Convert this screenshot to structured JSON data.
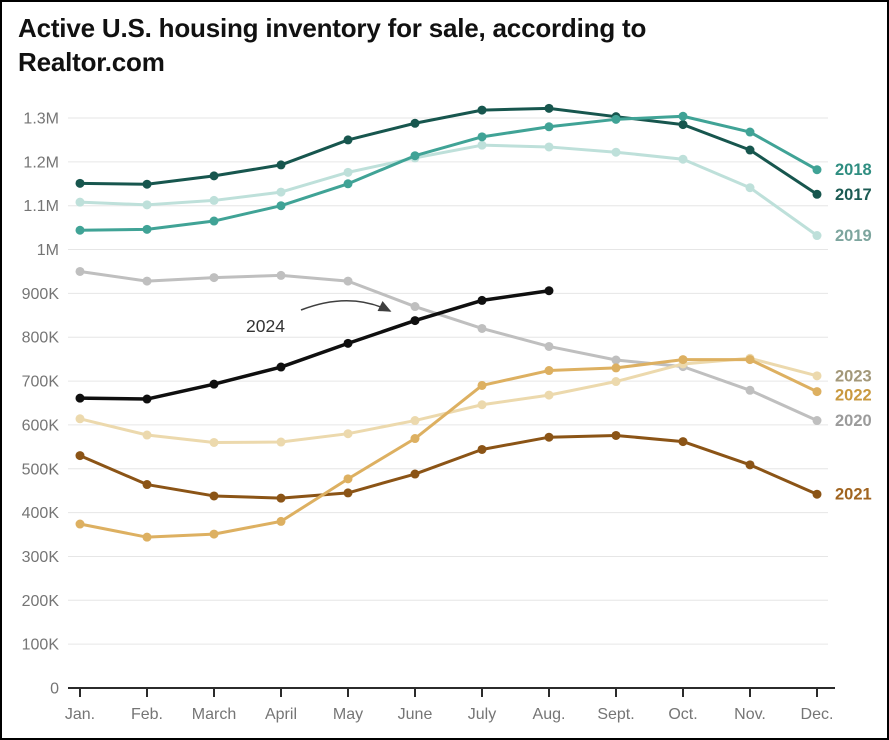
{
  "title": "Active U.S. housing inventory for sale, according to Realtor.com",
  "chart_data": {
    "type": "line",
    "title": "Active U.S. housing inventory for sale, according to Realtor.com",
    "xlabel": "",
    "ylabel": "",
    "x": [
      "Jan.",
      "Feb.",
      "March",
      "April",
      "May",
      "June",
      "July",
      "Aug.",
      "Sept.",
      "Oct.",
      "Nov.",
      "Dec."
    ],
    "ylim": [
      0,
      1300000
    ],
    "grid": true,
    "legend_position": "right-edge-year-labels",
    "yticks": [
      {
        "value": 0,
        "label": "0"
      },
      {
        "value": 100000,
        "label": "100K"
      },
      {
        "value": 200000,
        "label": "200K"
      },
      {
        "value": 300000,
        "label": "300K"
      },
      {
        "value": 400000,
        "label": "400K"
      },
      {
        "value": 500000,
        "label": "500K"
      },
      {
        "value": 600000,
        "label": "600K"
      },
      {
        "value": 700000,
        "label": "700K"
      },
      {
        "value": 800000,
        "label": "800K"
      },
      {
        "value": 900000,
        "label": "900K"
      },
      {
        "value": 1000000,
        "label": "1M"
      },
      {
        "value": 1100000,
        "label": "1.1M"
      },
      {
        "value": 1200000,
        "label": "1.2M"
      },
      {
        "value": 1300000,
        "label": "1.3M"
      }
    ],
    "series": [
      {
        "name": "2017",
        "color": "#17564e",
        "label_color": "#1c5b53",
        "label_at_end": true,
        "values": [
          1151000,
          1149000,
          1168000,
          1193000,
          1250000,
          1288000,
          1318000,
          1322000,
          1303000,
          1285000,
          1227000,
          1126000
        ]
      },
      {
        "name": "2018",
        "color": "#40a396",
        "label_color": "#2f8e81",
        "label_at_end": true,
        "values": [
          1044000,
          1046000,
          1065000,
          1100000,
          1150000,
          1214000,
          1257000,
          1280000,
          1297000,
          1304000,
          1268000,
          1182000
        ]
      },
      {
        "name": "2019",
        "color": "#bee0da",
        "label_color": "#7da59e",
        "label_at_end": true,
        "values": [
          1108000,
          1102000,
          1112000,
          1131000,
          1176000,
          1209000,
          1238000,
          1234000,
          1222000,
          1206000,
          1141000,
          1032000
        ]
      },
      {
        "name": "2020",
        "color": "#bfbfbf",
        "label_color": "#9b9b9b",
        "label_at_end": true,
        "values": [
          950000,
          928000,
          936000,
          941000,
          928000,
          870000,
          820000,
          779000,
          748000,
          733000,
          679000,
          610000
        ]
      },
      {
        "name": "2021",
        "color": "#8b5416",
        "label_color": "#a06420",
        "label_at_end": true,
        "values": [
          530000,
          464000,
          438000,
          433000,
          445000,
          488000,
          544000,
          572000,
          576000,
          562000,
          509000,
          442000
        ]
      },
      {
        "name": "2022",
        "color": "#ddb061",
        "label_color": "#c9993f",
        "label_at_end": true,
        "values": [
          374000,
          344000,
          351000,
          380000,
          477000,
          569000,
          690000,
          724000,
          730000,
          749000,
          749000,
          676000
        ]
      },
      {
        "name": "2023",
        "color": "#ecd9ad",
        "label_color": "#a3987a",
        "label_at_end": true,
        "values": [
          614000,
          577000,
          560000,
          561000,
          580000,
          610000,
          646000,
          668000,
          699000,
          739000,
          752000,
          712000
        ]
      },
      {
        "name": "2024",
        "color": "#0f0f0f",
        "label_color": "#333333",
        "label_at_end": false,
        "width": 3.5,
        "values": [
          661000,
          659000,
          693000,
          732000,
          786000,
          838000,
          884000,
          906000
        ]
      }
    ],
    "draw_order": [
      "2019",
      "2017",
      "2018",
      "2020",
      "2023",
      "2021",
      "2022",
      "2024"
    ],
    "annotation": {
      "text": "2024",
      "arrow": true,
      "arrow_color": "#3f3f3f"
    },
    "style": {
      "grid_color": "#e6e6e6",
      "axis_color": "#2b2b2b",
      "tick_label_color": "#757575",
      "annotation_text_color": "#333333"
    }
  }
}
